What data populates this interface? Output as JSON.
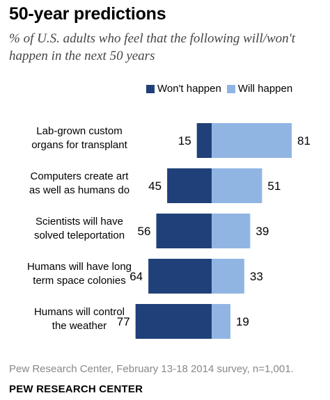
{
  "title": "50-year predictions",
  "subtitle": "% of U.S. adults who feel that the following will/won't happen in the next 50 years",
  "legend": {
    "wont": "Won't happen",
    "will": "Will happen"
  },
  "colors": {
    "wont": "#1f4079",
    "will": "#91b5e3"
  },
  "source": "Pew Research Center, February 13-18 2014 survey, n=1,001.",
  "org": "PEW RESEARCH CENTER",
  "chart_data": {
    "type": "bar",
    "orientation": "horizontal-diverging",
    "categories": [
      [
        "Lab-grown custom",
        "organs for transplant"
      ],
      [
        "Computers create art",
        "as well as humans do"
      ],
      [
        "Scientists will have",
        "solved teleportation"
      ],
      [
        "Humans will have long",
        "term space colonies"
      ],
      [
        "Humans will control",
        "the weather"
      ]
    ],
    "series": [
      {
        "name": "Won't happen",
        "values": [
          15,
          45,
          56,
          64,
          77
        ]
      },
      {
        "name": "Will happen",
        "values": [
          81,
          51,
          39,
          33,
          19
        ]
      }
    ]
  }
}
